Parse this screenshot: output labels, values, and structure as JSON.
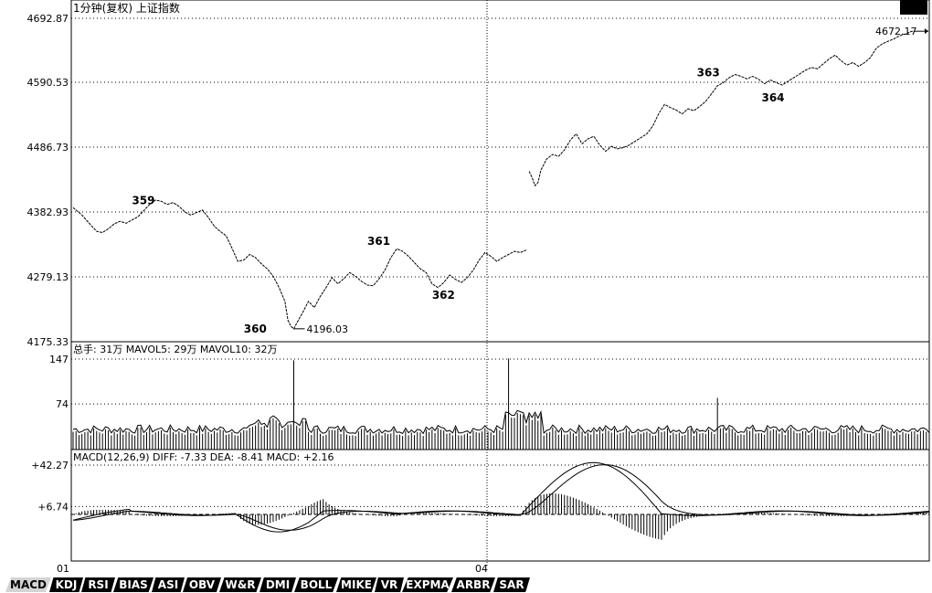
{
  "header": {
    "title": "1分钟(复权)  上证指数"
  },
  "colors": {
    "line": "#000000",
    "grid": "#000000",
    "bg": "#ffffff",
    "tab_bg": "#000000",
    "tab_active_bg": "#d4d4d4"
  },
  "chart_data": [
    {
      "type": "line",
      "name": "price",
      "y_ticks": [
        "4692.87",
        "4590.53",
        "4486.73",
        "4382.93",
        "4279.13",
        "4175.33"
      ],
      "ylim": [
        4175.33,
        4692.87
      ],
      "x_ticks": [
        "01",
        "04"
      ],
      "points": [
        [
          0,
          4390
        ],
        [
          3,
          4378
        ],
        [
          6,
          4362
        ],
        [
          8,
          4352
        ],
        [
          10,
          4350
        ],
        [
          12,
          4356
        ],
        [
          14,
          4364
        ],
        [
          16,
          4368
        ],
        [
          18,
          4365
        ],
        [
          20,
          4370
        ],
        [
          22,
          4375
        ],
        [
          24,
          4385
        ],
        [
          26,
          4395
        ],
        [
          28,
          4402
        ],
        [
          30,
          4400
        ],
        [
          32,
          4395
        ],
        [
          34,
          4398
        ],
        [
          36,
          4392
        ],
        [
          38,
          4383
        ],
        [
          40,
          4378
        ],
        [
          42,
          4382
        ],
        [
          44,
          4386
        ],
        [
          46,
          4374
        ],
        [
          48,
          4360
        ],
        [
          50,
          4352
        ],
        [
          52,
          4345
        ],
        [
          54,
          4325
        ],
        [
          56,
          4304
        ],
        [
          58,
          4306
        ],
        [
          60,
          4315
        ],
        [
          62,
          4310
        ],
        [
          64,
          4300
        ],
        [
          66,
          4292
        ],
        [
          68,
          4280
        ],
        [
          70,
          4262
        ],
        [
          72,
          4240
        ],
        [
          73,
          4210
        ],
        [
          74,
          4200
        ],
        [
          75,
          4196
        ],
        [
          76,
          4205
        ],
        [
          78,
          4222
        ],
        [
          80,
          4240
        ],
        [
          82,
          4230
        ],
        [
          84,
          4248
        ],
        [
          86,
          4262
        ],
        [
          88,
          4278
        ],
        [
          90,
          4268
        ],
        [
          92,
          4276
        ],
        [
          94,
          4286
        ],
        [
          96,
          4280
        ],
        [
          98,
          4272
        ],
        [
          100,
          4266
        ],
        [
          102,
          4265
        ],
        [
          104,
          4276
        ],
        [
          106,
          4290
        ],
        [
          108,
          4310
        ],
        [
          110,
          4324
        ],
        [
          112,
          4320
        ],
        [
          114,
          4312
        ],
        [
          116,
          4302
        ],
        [
          118,
          4292
        ],
        [
          120,
          4286
        ],
        [
          122,
          4268
        ],
        [
          124,
          4262
        ],
        [
          126,
          4270
        ],
        [
          128,
          4282
        ],
        [
          130,
          4275
        ],
        [
          132,
          4270
        ],
        [
          134,
          4278
        ],
        [
          136,
          4290
        ],
        [
          138,
          4306
        ],
        [
          140,
          4318
        ],
        [
          142,
          4312
        ],
        [
          144,
          4304
        ],
        [
          146,
          4310
        ],
        [
          148,
          4315
        ],
        [
          150,
          4320
        ],
        [
          152,
          4318
        ],
        [
          154,
          4322
        ],
        [
          155,
          4448
        ],
        [
          156,
          4438
        ],
        [
          157,
          4425
        ],
        [
          158,
          4430
        ],
        [
          159,
          4450
        ],
        [
          161,
          4468
        ],
        [
          163,
          4475
        ],
        [
          165,
          4472
        ],
        [
          167,
          4482
        ],
        [
          169,
          4498
        ],
        [
          171,
          4508
        ],
        [
          173,
          4492
        ],
        [
          175,
          4500
        ],
        [
          177,
          4504
        ],
        [
          179,
          4490
        ],
        [
          181,
          4480
        ],
        [
          183,
          4488
        ],
        [
          185,
          4484
        ],
        [
          187,
          4486
        ],
        [
          189,
          4490
        ],
        [
          191,
          4496
        ],
        [
          193,
          4502
        ],
        [
          195,
          4508
        ],
        [
          197,
          4520
        ],
        [
          199,
          4540
        ],
        [
          201,
          4555
        ],
        [
          203,
          4550
        ],
        [
          205,
          4546
        ],
        [
          207,
          4540
        ],
        [
          209,
          4548
        ],
        [
          211,
          4545
        ],
        [
          213,
          4552
        ],
        [
          215,
          4560
        ],
        [
          217,
          4572
        ],
        [
          219,
          4585
        ],
        [
          221,
          4590
        ],
        [
          223,
          4598
        ],
        [
          225,
          4603
        ],
        [
          227,
          4600
        ],
        [
          229,
          4596
        ],
        [
          231,
          4600
        ],
        [
          233,
          4595
        ],
        [
          235,
          4588
        ],
        [
          237,
          4594
        ],
        [
          239,
          4590
        ],
        [
          241,
          4586
        ],
        [
          243,
          4592
        ],
        [
          245,
          4598
        ],
        [
          247,
          4604
        ],
        [
          249,
          4610
        ],
        [
          251,
          4614
        ],
        [
          253,
          4612
        ],
        [
          255,
          4620
        ],
        [
          257,
          4628
        ],
        [
          259,
          4634
        ],
        [
          261,
          4625
        ],
        [
          263,
          4618
        ],
        [
          265,
          4622
        ],
        [
          267,
          4616
        ],
        [
          269,
          4622
        ],
        [
          271,
          4630
        ],
        [
          273,
          4645
        ],
        [
          275,
          4652
        ],
        [
          277,
          4656
        ],
        [
          279,
          4660
        ],
        [
          281,
          4665
        ],
        [
          283,
          4668
        ],
        [
          285,
          4672
        ],
        [
          287,
          4672.17
        ]
      ],
      "annotations": [
        {
          "text": "359",
          "x": 20,
          "y": 4395
        },
        {
          "text": "360",
          "x": 58,
          "y": 4190
        },
        {
          "text": "361",
          "x": 100,
          "y": 4330
        },
        {
          "text": "362",
          "x": 122,
          "y": 4244
        },
        {
          "text": "363",
          "x": 212,
          "y": 4600
        },
        {
          "text": "364",
          "x": 234,
          "y": 4560
        }
      ],
      "low_label": "4196.03",
      "last_label": "4672.17"
    },
    {
      "type": "bar",
      "name": "volume",
      "legend": "总手: 31万  MAVOL5: 29万  MAVOL10: 32万",
      "y_ticks": [
        "147",
        "74"
      ],
      "ylim": [
        0,
        147
      ],
      "spikes": [
        {
          "x": 75,
          "value": 145
        },
        {
          "x": 148,
          "value": 148
        },
        {
          "x": 219,
          "value": 84
        }
      ]
    },
    {
      "type": "bar",
      "name": "macd",
      "legend": "MACD(12,26,9)  DIFF: -7.33  DEA: -8.41  MACD: +2.16",
      "y_ticks": [
        "+42.27",
        "+6.74"
      ],
      "ylim": [
        -40,
        42.27
      ]
    }
  ],
  "tabs": [
    "MACD",
    "KDJ",
    "RSI",
    "BIAS",
    "ASI",
    "OBV",
    "W&R",
    "DMI",
    "BOLL",
    "MIKE",
    "VR",
    "EXPMA",
    "ARBR",
    "SAR"
  ],
  "active_tab": "MACD"
}
